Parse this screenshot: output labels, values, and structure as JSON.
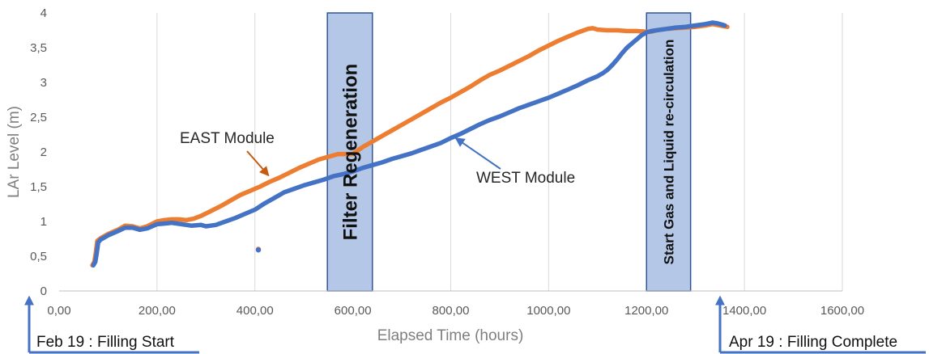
{
  "chart_data": {
    "type": "line",
    "xlabel": "Elapsed Time (hours)",
    "ylabel": "LAr Level (m)",
    "xlim": [
      0,
      1600
    ],
    "ylim": [
      0,
      4
    ],
    "x_ticks": [
      0,
      200,
      400,
      600,
      800,
      1000,
      1200,
      1400,
      1600
    ],
    "x_tick_labels": [
      "0,00",
      "200,00",
      "400,00",
      "600,00",
      "800,00",
      "1000,00",
      "1200,00",
      "1400,00",
      "1600,00"
    ],
    "y_ticks": [
      0,
      0.5,
      1,
      1.5,
      2,
      2.5,
      3,
      3.5,
      4
    ],
    "y_tick_labels": [
      "0",
      "0,5",
      "1",
      "1,5",
      "2",
      "2,5",
      "3",
      "3,5",
      "4"
    ],
    "grid": "vertical",
    "series": [
      {
        "name": "EAST Module",
        "color": "#ed7d31",
        "x": [
          68,
          72,
          75,
          78,
          85,
          100,
          120,
          135,
          150,
          165,
          180,
          200,
          215,
          230,
          245,
          260,
          275,
          290,
          310,
          330,
          350,
          370,
          390,
          410,
          430,
          450,
          470,
          490,
          510,
          530,
          550,
          570,
          600,
          620,
          640,
          660,
          680,
          700,
          720,
          740,
          760,
          780,
          800,
          820,
          840,
          860,
          880,
          900,
          920,
          940,
          960,
          980,
          1000,
          1020,
          1040,
          1060,
          1080,
          1090,
          1100,
          1120,
          1140,
          1160,
          1180,
          1200,
          1210,
          1220,
          1240,
          1260,
          1280,
          1300,
          1320,
          1335,
          1350,
          1365
        ],
        "y": [
          0.37,
          0.42,
          0.55,
          0.72,
          0.76,
          0.82,
          0.88,
          0.94,
          0.93,
          0.9,
          0.93,
          1.0,
          1.02,
          1.03,
          1.03,
          1.02,
          1.04,
          1.08,
          1.15,
          1.22,
          1.3,
          1.38,
          1.44,
          1.5,
          1.57,
          1.63,
          1.7,
          1.77,
          1.83,
          1.89,
          1.93,
          1.97,
          1.97,
          2.07,
          2.15,
          2.23,
          2.31,
          2.39,
          2.47,
          2.55,
          2.63,
          2.71,
          2.78,
          2.86,
          2.94,
          3.03,
          3.11,
          3.17,
          3.24,
          3.31,
          3.38,
          3.46,
          3.53,
          3.6,
          3.66,
          3.72,
          3.77,
          3.78,
          3.76,
          3.75,
          3.75,
          3.74,
          3.74,
          3.73,
          3.73,
          3.75,
          3.77,
          3.78,
          3.79,
          3.8,
          3.82,
          3.84,
          3.82,
          3.8
        ]
      },
      {
        "name": "WEST Module",
        "color": "#4472c4",
        "x": [
          70,
          74,
          77,
          80,
          85,
          100,
          120,
          135,
          150,
          165,
          180,
          200,
          215,
          230,
          250,
          270,
          290,
          300,
          320,
          340,
          360,
          380,
          400,
          420,
          440,
          460,
          480,
          500,
          520,
          540,
          560,
          580,
          600,
          620,
          640,
          660,
          680,
          700,
          720,
          740,
          760,
          780,
          800,
          820,
          840,
          860,
          880,
          900,
          920,
          940,
          960,
          980,
          1000,
          1020,
          1040,
          1060,
          1080,
          1100,
          1110,
          1120,
          1130,
          1140,
          1150,
          1160,
          1170,
          1180,
          1190,
          1200,
          1210,
          1220,
          1240,
          1260,
          1280,
          1300,
          1320,
          1335,
          1345,
          1360
        ],
        "y": [
          0.37,
          0.42,
          0.55,
          0.7,
          0.74,
          0.8,
          0.86,
          0.91,
          0.91,
          0.88,
          0.9,
          0.96,
          0.97,
          0.98,
          0.96,
          0.94,
          0.95,
          0.93,
          0.95,
          1.0,
          1.05,
          1.11,
          1.17,
          1.26,
          1.34,
          1.42,
          1.47,
          1.52,
          1.56,
          1.6,
          1.65,
          1.68,
          1.72,
          1.77,
          1.81,
          1.85,
          1.9,
          1.94,
          1.98,
          2.03,
          2.08,
          2.13,
          2.2,
          2.26,
          2.33,
          2.4,
          2.46,
          2.51,
          2.57,
          2.63,
          2.68,
          2.73,
          2.78,
          2.84,
          2.9,
          2.96,
          3.03,
          3.09,
          3.13,
          3.18,
          3.25,
          3.33,
          3.42,
          3.5,
          3.56,
          3.62,
          3.68,
          3.72,
          3.74,
          3.75,
          3.77,
          3.79,
          3.8,
          3.82,
          3.84,
          3.86,
          3.85,
          3.82
        ]
      }
    ],
    "outlier_points": [
      {
        "series": "EAST Module",
        "x": 407,
        "y": 0.6
      },
      {
        "series": "WEST Module",
        "x": 407,
        "y": 0.59
      }
    ],
    "bands": [
      {
        "label": "Filter Regeneration",
        "x_start": 548,
        "x_end": 640,
        "fill": "#b4c7e7",
        "stroke": "#2f5597"
      },
      {
        "label": "Start Gas and Liquid re-circulation",
        "x_start": 1200,
        "x_end": 1290,
        "fill": "#b4c7e7",
        "stroke": "#2f5597"
      }
    ],
    "annotations": [
      {
        "text": "EAST Module",
        "arrow_color": "#c55a11",
        "arrow_to": {
          "x": 428,
          "y": 1.66
        }
      },
      {
        "text": "WEST Module",
        "arrow_color": "#4472c4",
        "arrow_to": {
          "x": 810,
          "y": 2.2
        }
      }
    ],
    "footnotes": [
      {
        "text": "Feb 19 : Filling Start",
        "color": "#4472c4"
      },
      {
        "text": "Apr 19 : Filling Complete",
        "color": "#4472c4"
      }
    ]
  }
}
